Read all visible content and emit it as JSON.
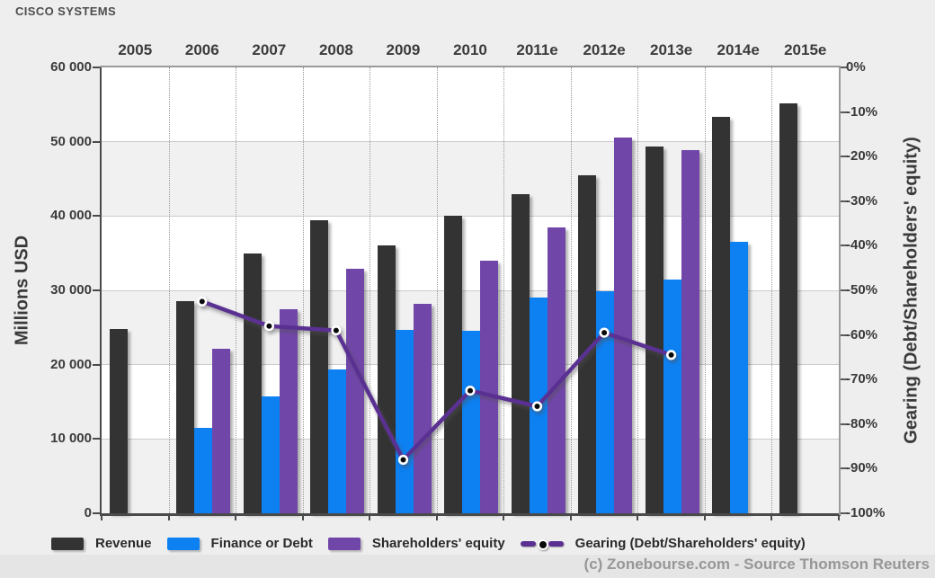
{
  "page": {
    "title": "CISCO SYSTEMS",
    "footer": "(c) Zonebourse.com - Source Thomson Reuters"
  },
  "colors": {
    "page_bg": "#eeeeee",
    "plot_bg": "#ffffff",
    "band_alt": "#f1f1f1",
    "grid": "#cccccc",
    "revenue": "#333333",
    "debt": "#0d80f2",
    "equity": "#7146a9",
    "gearing_line": "#5a3192",
    "marker": "#0a0a0a",
    "text_dark": "#3a3a3a",
    "copyright_gray": "#979797"
  },
  "legend": {
    "items": [
      {
        "label": "Revenue",
        "type": "swatch",
        "color": "#333333"
      },
      {
        "label": "Finance or Debt",
        "type": "swatch",
        "color": "#0d80f2"
      },
      {
        "label": "Shareholders' equity",
        "type": "swatch",
        "color": "#7146a9"
      },
      {
        "label": "Gearing (Debt/Shareholders' equity)",
        "type": "line",
        "color": "#5a3192"
      }
    ]
  },
  "chart_data": {
    "type": "bar+line",
    "title": "CISCO SYSTEMS",
    "categories": [
      "2005",
      "2006",
      "2007",
      "2008",
      "2009",
      "2010",
      "2011e",
      "2012e",
      "2013e",
      "2014e",
      "2015e"
    ],
    "series": [
      {
        "name": "Revenue",
        "type": "bar",
        "axis": "left",
        "color": "#333333",
        "values": [
          24800,
          28500,
          34900,
          39400,
          36000,
          40000,
          42900,
          45500,
          49300,
          53400,
          55200
        ]
      },
      {
        "name": "Finance or Debt",
        "type": "bar",
        "axis": "left",
        "color": "#0d80f2",
        "values": [
          null,
          11500,
          15700,
          19300,
          24700,
          24600,
          29000,
          29900,
          31400,
          36500,
          null
        ]
      },
      {
        "name": "Shareholders' equity",
        "type": "bar",
        "axis": "left",
        "color": "#7146a9",
        "values": [
          null,
          22100,
          27500,
          32900,
          28200,
          34000,
          38500,
          50600,
          48900,
          null,
          null
        ]
      },
      {
        "name": "Gearing (Debt/Shareholders' equity)",
        "type": "line",
        "axis": "right",
        "color": "#5a3192",
        "values": [
          null,
          -52.5,
          -58,
          -59,
          -88,
          -72.5,
          -76,
          -59.5,
          -64.5,
          null,
          null
        ]
      }
    ],
    "ylabel_left": "Millions USD",
    "ylabel_right": "Gearing (Debt/Shareholders' equity)",
    "ylim_left": [
      0,
      60000
    ],
    "ylim_right": [
      -100,
      0
    ],
    "yticks_left": [
      "0",
      "10 000",
      "20 000",
      "30 000",
      "40 000",
      "50 000",
      "60 000"
    ],
    "yticks_right": [
      "0%",
      "-10%",
      "-20%",
      "-30%",
      "-40%",
      "-50%",
      "-60%",
      "-70%",
      "-80%",
      "-90%",
      "-100%"
    ],
    "grid": "horizontal solid, vertical dotted between year slots",
    "legend_position": "bottom"
  }
}
